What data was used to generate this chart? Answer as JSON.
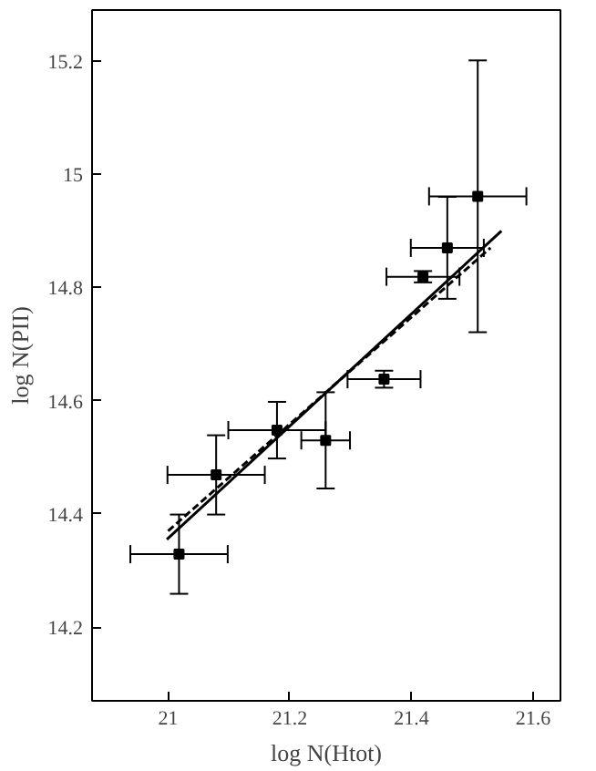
{
  "chart_data": {
    "type": "scatter",
    "xlabel": "log N(Htot)",
    "ylabel": "log N(PII)",
    "xlim": [
      20.875,
      21.645
    ],
    "xticks": [
      21,
      21.2,
      21.4,
      21.6
    ],
    "ylim": [
      14.07,
      15.29
    ],
    "yticks": [
      14.2,
      14.4,
      14.6,
      14.8,
      15,
      15.2
    ],
    "grid": false,
    "marker": "square",
    "series": [
      {
        "color": "#000000",
        "x": [
          21.509,
          21.459,
          21.419,
          21.355,
          21.259,
          21.179,
          21.079,
          21.018
        ],
        "values": [
          14.961,
          14.87,
          14.819,
          14.638,
          14.53,
          14.548,
          14.469,
          14.329
        ],
        "errors": [
          0.24,
          0.09,
          0.01,
          0.015,
          0.085,
          0.05,
          0.07,
          0.07
        ],
        "xerrors": [
          0.08,
          0.06,
          0.06,
          0.06,
          0.04,
          0.08,
          0.08,
          0.08
        ]
      },
      {
        "type": "line",
        "color": "#000000",
        "line_style": "solid",
        "marker": "none",
        "x": [
          20.998,
          21.548
        ],
        "values": [
          14.355,
          14.9
        ]
      },
      {
        "type": "line",
        "color": "#000000",
        "line_style": "dashed",
        "marker": "none",
        "x": [
          21.0,
          21.53
        ],
        "values": [
          14.37,
          14.87
        ]
      }
    ]
  }
}
